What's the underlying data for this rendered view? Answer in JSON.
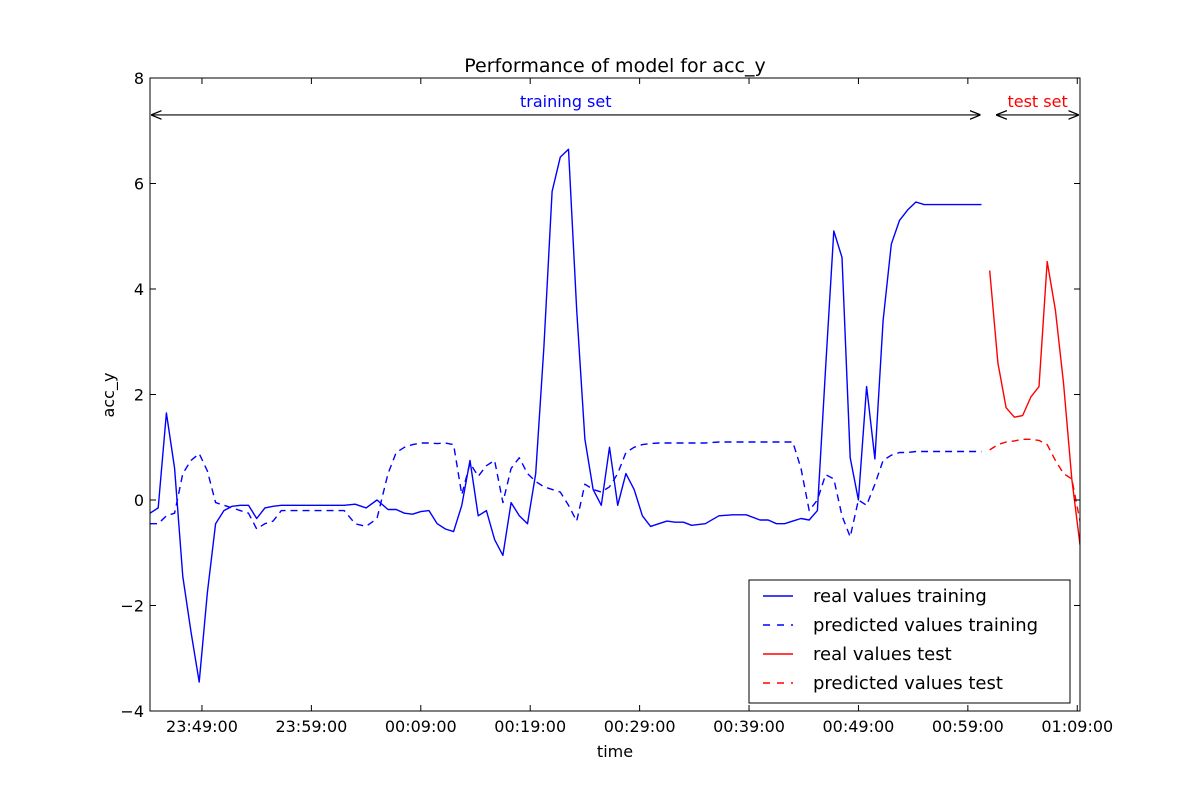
{
  "chart_data": {
    "type": "line",
    "title": "Performance of model for acc_y",
    "xlabel": "time",
    "ylabel": "acc_y",
    "ylim": [
      -4,
      8
    ],
    "yticks": [
      -4,
      -2,
      0,
      2,
      4,
      6,
      8
    ],
    "ytick_labels": [
      "−4",
      "−2",
      "0",
      "2",
      "4",
      "6",
      "8"
    ],
    "xlim": [
      "23:44:15",
      "01:09:15"
    ],
    "xticks": [
      "23:49:00",
      "23:59:00",
      "00:09:00",
      "00:19:00",
      "00:29:00",
      "00:39:00",
      "00:49:00",
      "00:59:00",
      "01:09:00"
    ],
    "grid": false,
    "legend_position": "lower-right",
    "annotations": [
      {
        "text": "training set",
        "span": [
          "23:44:15",
          "01:00:15"
        ],
        "y": 7.3,
        "color": "#0000ff"
      },
      {
        "text": "test set",
        "span": [
          "01:01:30",
          "01:09:15"
        ],
        "y": 7.3,
        "color": "#ff0000"
      }
    ],
    "series": [
      {
        "name": "real values training",
        "color": "#0000ff",
        "dash": "solid",
        "x": [
          "23:44:15",
          "23:45:00",
          "23:45:45",
          "23:46:30",
          "23:47:15",
          "23:48:00",
          "23:48:45",
          "23:49:30",
          "23:50:15",
          "23:51:00",
          "23:51:45",
          "23:52:30",
          "23:53:15",
          "23:54:00",
          "23:54:45",
          "23:55:30",
          "23:56:15",
          "23:57:00",
          "23:57:45",
          "23:58:30",
          "23:59:15",
          "00:00:00",
          "00:01:00",
          "00:02:00",
          "00:03:00",
          "00:04:00",
          "00:05:00",
          "00:06:00",
          "00:06:45",
          "00:07:30",
          "00:08:15",
          "00:09:00",
          "00:09:45",
          "00:10:30",
          "00:11:15",
          "00:12:00",
          "00:12:45",
          "00:13:30",
          "00:14:15",
          "00:15:00",
          "00:15:45",
          "00:16:30",
          "00:17:15",
          "00:18:00",
          "00:18:45",
          "00:19:30",
          "00:20:15",
          "00:21:00",
          "00:21:45",
          "00:22:30",
          "00:23:15",
          "00:24:00",
          "00:24:45",
          "00:25:30",
          "00:26:15",
          "00:27:00",
          "00:27:45",
          "00:28:30",
          "00:29:15",
          "00:30:00",
          "00:30:45",
          "00:31:30",
          "00:32:15",
          "00:33:00",
          "00:33:45",
          "00:35:00",
          "00:36:15",
          "00:37:30",
          "00:38:45",
          "00:40:00",
          "00:40:45",
          "00:41:30",
          "00:42:15",
          "00:43:00",
          "00:43:45",
          "00:44:30",
          "00:45:15",
          "00:46:00",
          "00:46:45",
          "00:47:30",
          "00:48:15",
          "00:49:00",
          "00:49:45",
          "00:50:30",
          "00:51:15",
          "00:52:00",
          "00:52:45",
          "00:53:30",
          "00:54:15",
          "00:55:00",
          "00:55:45",
          "00:56:30",
          "00:57:15",
          "00:58:00",
          "00:58:45",
          "00:59:30",
          "01:00:15"
        ],
        "values": [
          -0.25,
          -0.15,
          1.65,
          0.6,
          -1.45,
          -2.5,
          -3.45,
          -1.75,
          -0.45,
          -0.2,
          -0.12,
          -0.1,
          -0.1,
          -0.35,
          -0.15,
          -0.12,
          -0.1,
          -0.1,
          -0.1,
          -0.1,
          -0.1,
          -0.1,
          -0.1,
          -0.1,
          -0.08,
          -0.15,
          0.0,
          -0.18,
          -0.18,
          -0.25,
          -0.27,
          -0.22,
          -0.2,
          -0.45,
          -0.55,
          -0.6,
          -0.1,
          0.75,
          -0.3,
          -0.2,
          -0.75,
          -1.05,
          -0.05,
          -0.3,
          -0.45,
          0.5,
          2.9,
          5.85,
          6.5,
          6.65,
          3.6,
          1.15,
          0.2,
          -0.1,
          1.0,
          -0.1,
          0.5,
          0.2,
          -0.3,
          -0.5,
          -0.45,
          -0.4,
          -0.42,
          -0.42,
          -0.48,
          -0.45,
          -0.3,
          -0.28,
          -0.28,
          -0.38,
          -0.38,
          -0.45,
          -0.45,
          -0.4,
          -0.35,
          -0.38,
          -0.2,
          2.5,
          5.1,
          4.6,
          0.8,
          0.0,
          2.15,
          0.78,
          3.4,
          4.85,
          5.3,
          5.5,
          5.65,
          5.6,
          5.6,
          5.6,
          5.6,
          5.6,
          5.6,
          5.6,
          5.6
        ],
        "x_end": "01:00:15"
      },
      {
        "name": "predicted values training",
        "color": "#0000ff",
        "dash": "dashed",
        "x": [
          "23:44:15",
          "23:45:00",
          "23:45:45",
          "23:46:30",
          "23:47:15",
          "23:48:00",
          "23:48:45",
          "23:49:30",
          "23:50:15",
          "23:51:00",
          "23:51:45",
          "23:52:30",
          "23:53:15",
          "23:54:00",
          "23:54:45",
          "23:55:30",
          "23:56:15",
          "23:57:00",
          "23:57:45",
          "23:58:30",
          "23:59:15",
          "00:00:00",
          "00:01:00",
          "00:02:00",
          "00:03:00",
          "00:04:00",
          "00:05:00",
          "00:06:00",
          "00:06:45",
          "00:07:30",
          "00:08:15",
          "00:09:00",
          "00:09:45",
          "00:10:30",
          "00:11:15",
          "00:12:00",
          "00:12:45",
          "00:13:30",
          "00:14:15",
          "00:15:00",
          "00:15:45",
          "00:16:30",
          "00:17:15",
          "00:18:00",
          "00:18:45",
          "00:19:30",
          "00:20:15",
          "00:21:00",
          "00:21:45",
          "00:22:30",
          "00:23:15",
          "00:24:00",
          "00:24:45",
          "00:25:30",
          "00:26:15",
          "00:27:00",
          "00:27:45",
          "00:28:30",
          "00:29:15",
          "00:30:00",
          "00:30:45",
          "00:31:30",
          "00:32:15",
          "00:33:00",
          "00:33:45",
          "00:35:00",
          "00:36:15",
          "00:37:30",
          "00:38:45",
          "00:40:00",
          "00:40:45",
          "00:41:30",
          "00:42:15",
          "00:43:00",
          "00:43:45",
          "00:44:30",
          "00:45:15",
          "00:46:00",
          "00:46:45",
          "00:47:30",
          "00:48:15",
          "00:49:00",
          "00:49:45",
          "00:50:30",
          "00:51:15",
          "00:52:00",
          "00:52:45",
          "00:53:30",
          "00:54:15",
          "00:55:00",
          "00:55:45",
          "00:56:30",
          "00:57:15",
          "00:58:00",
          "00:58:45",
          "00:59:30",
          "01:00:15"
        ],
        "values": [
          -0.45,
          -0.45,
          -0.3,
          -0.25,
          0.5,
          0.75,
          0.88,
          0.55,
          -0.05,
          -0.1,
          -0.15,
          -0.2,
          -0.25,
          -0.55,
          -0.45,
          -0.4,
          -0.2,
          -0.2,
          -0.2,
          -0.2,
          -0.2,
          -0.2,
          -0.2,
          -0.2,
          -0.45,
          -0.5,
          -0.35,
          0.5,
          0.9,
          1.0,
          1.05,
          1.08,
          1.08,
          1.07,
          1.08,
          1.05,
          0.1,
          0.7,
          0.45,
          0.65,
          0.75,
          -0.05,
          0.6,
          0.8,
          0.5,
          0.35,
          0.25,
          0.2,
          0.15,
          -0.1,
          -0.4,
          0.3,
          0.2,
          0.15,
          0.25,
          0.5,
          0.9,
          1.0,
          1.05,
          1.07,
          1.08,
          1.08,
          1.08,
          1.08,
          1.08,
          1.08,
          1.1,
          1.1,
          1.1,
          1.1,
          1.1,
          1.1,
          1.1,
          1.1,
          0.6,
          -0.2,
          0.0,
          0.48,
          0.4,
          -0.3,
          -0.7,
          0.0,
          -0.1,
          0.3,
          0.75,
          0.85,
          0.9,
          0.9,
          0.92,
          0.92,
          0.92,
          0.92,
          0.92,
          0.92,
          0.92,
          0.92,
          0.92
        ]
      },
      {
        "name": "real values test",
        "color": "#ff0000",
        "dash": "solid",
        "x": [
          "01:01:00",
          "01:01:45",
          "01:02:30",
          "01:03:15",
          "01:04:00",
          "01:04:45",
          "01:05:30",
          "01:06:15",
          "01:07:00",
          "01:07:45",
          "01:08:30",
          "01:09:15"
        ],
        "values": [
          4.35,
          2.6,
          1.75,
          1.57,
          1.6,
          1.95,
          2.15,
          4.52,
          3.6,
          2.2,
          0.4,
          -0.85
        ]
      },
      {
        "name": "predicted values test",
        "color": "#ff0000",
        "dash": "dashed",
        "x": [
          "01:01:00",
          "01:01:45",
          "01:02:30",
          "01:03:15",
          "01:04:00",
          "01:04:45",
          "01:05:30",
          "01:06:15",
          "01:07:00",
          "01:07:45",
          "01:08:30",
          "01:09:15"
        ],
        "values": [
          0.95,
          1.05,
          1.1,
          1.12,
          1.15,
          1.15,
          1.13,
          1.05,
          0.75,
          0.5,
          0.4,
          -0.4
        ]
      }
    ]
  }
}
